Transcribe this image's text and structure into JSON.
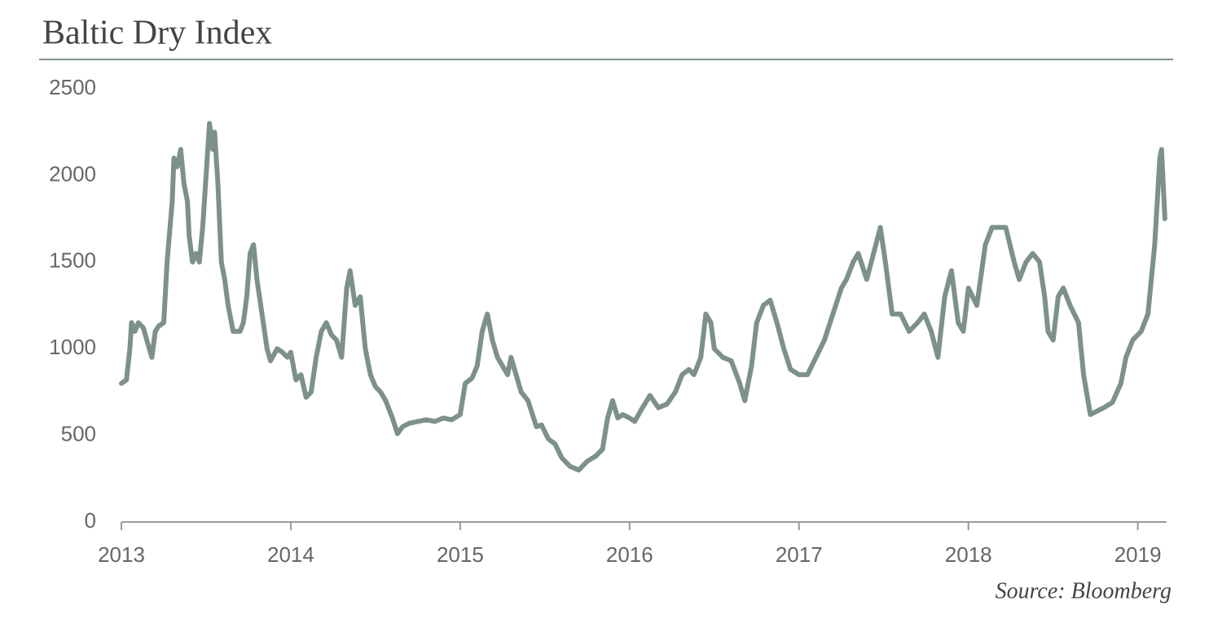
{
  "chart_data": {
    "type": "line",
    "title": "Baltic Dry Index",
    "source": "Source: Bloomberg",
    "xlim": [
      2013,
      2019.17
    ],
    "xticks": [
      2013,
      2014,
      2015,
      2016,
      2017,
      2018,
      2019
    ],
    "ylim": [
      0,
      2500
    ],
    "yticks": [
      0,
      500,
      1000,
      1500,
      2000,
      2500
    ],
    "grid": false,
    "series": [
      {
        "name": "Baltic Dry Index",
        "color": "#7d918c",
        "x": [
          2013.0,
          2013.03,
          2013.05,
          2013.06,
          2013.08,
          2013.1,
          2013.13,
          2013.15,
          2013.18,
          2013.2,
          2013.22,
          2013.25,
          2013.27,
          2013.3,
          2013.31,
          2013.33,
          2013.35,
          2013.37,
          2013.39,
          2013.4,
          2013.42,
          2013.44,
          2013.46,
          2013.48,
          2013.5,
          2013.52,
          2013.54,
          2013.55,
          2013.57,
          2013.59,
          2013.61,
          2013.63,
          2013.66,
          2013.7,
          2013.72,
          2013.74,
          2013.76,
          2013.78,
          2013.8,
          2013.83,
          2013.86,
          2013.88,
          2013.92,
          2013.95,
          2013.98,
          2014.0,
          2014.03,
          2014.06,
          2014.09,
          2014.12,
          2014.15,
          2014.18,
          2014.21,
          2014.24,
          2014.27,
          2014.3,
          2014.33,
          2014.35,
          2014.38,
          2014.41,
          2014.44,
          2014.47,
          2014.5,
          2014.53,
          2014.56,
          2014.6,
          2014.63,
          2014.66,
          2014.7,
          2014.75,
          2014.8,
          2014.85,
          2014.9,
          2014.95,
          2015.0,
          2015.03,
          2015.07,
          2015.1,
          2015.13,
          2015.16,
          2015.19,
          2015.22,
          2015.25,
          2015.28,
          2015.3,
          2015.33,
          2015.36,
          2015.4,
          2015.45,
          2015.48,
          2015.52,
          2015.56,
          2015.6,
          2015.65,
          2015.7,
          2015.75,
          2015.8,
          2015.84,
          2015.87,
          2015.9,
          2015.93,
          2015.96,
          2016.0,
          2016.03,
          2016.07,
          2016.12,
          2016.17,
          2016.22,
          2016.27,
          2016.31,
          2016.35,
          2016.38,
          2016.42,
          2016.45,
          2016.48,
          2016.5,
          2016.55,
          2016.6,
          2016.65,
          2016.68,
          2016.72,
          2016.75,
          2016.79,
          2016.83,
          2016.87,
          2016.91,
          2016.95,
          2017.0,
          2017.05,
          2017.1,
          2017.15,
          2017.2,
          2017.25,
          2017.28,
          2017.32,
          2017.35,
          2017.4,
          2017.44,
          2017.48,
          2017.51,
          2017.55,
          2017.6,
          2017.65,
          2017.7,
          2017.74,
          2017.78,
          2017.82,
          2017.86,
          2017.9,
          2017.94,
          2017.97,
          2018.0,
          2018.05,
          2018.1,
          2018.14,
          2018.18,
          2018.22,
          2018.27,
          2018.3,
          2018.34,
          2018.38,
          2018.42,
          2018.45,
          2018.47,
          2018.5,
          2018.53,
          2018.56,
          2018.6,
          2018.65,
          2018.68,
          2018.72,
          2018.76,
          2018.8,
          2018.85,
          2018.9,
          2018.93,
          2018.97,
          2019.02,
          2019.06,
          2019.1,
          2019.13,
          2019.14,
          2019.16
        ],
        "values": [
          800,
          820,
          1000,
          1150,
          1100,
          1150,
          1120,
          1050,
          950,
          1100,
          1130,
          1150,
          1500,
          1850,
          2100,
          2050,
          2150,
          1950,
          1850,
          1650,
          1500,
          1550,
          1500,
          1700,
          2000,
          2300,
          2150,
          2250,
          1950,
          1500,
          1400,
          1250,
          1100,
          1100,
          1150,
          1300,
          1550,
          1600,
          1400,
          1200,
          1000,
          930,
          1000,
          980,
          950,
          980,
          820,
          850,
          720,
          750,
          950,
          1100,
          1150,
          1080,
          1050,
          950,
          1350,
          1450,
          1250,
          1300,
          1000,
          850,
          780,
          750,
          700,
          600,
          510,
          550,
          570,
          580,
          590,
          580,
          600,
          590,
          620,
          800,
          830,
          900,
          1100,
          1200,
          1050,
          950,
          900,
          850,
          950,
          850,
          750,
          700,
          550,
          560,
          480,
          450,
          370,
          320,
          300,
          350,
          380,
          420,
          600,
          700,
          600,
          620,
          600,
          580,
          650,
          730,
          660,
          680,
          750,
          850,
          880,
          850,
          950,
          1200,
          1150,
          1000,
          950,
          930,
          800,
          700,
          900,
          1150,
          1250,
          1280,
          1150,
          1000,
          880,
          850,
          850,
          950,
          1050,
          1200,
          1350,
          1400,
          1500,
          1550,
          1400,
          1550,
          1700,
          1500,
          1200,
          1200,
          1100,
          1150,
          1200,
          1100,
          950,
          1300,
          1450,
          1150,
          1100,
          1350,
          1250,
          1600,
          1700,
          1700,
          1700,
          1500,
          1400,
          1500,
          1550,
          1500,
          1300,
          1100,
          1050,
          1300,
          1350,
          1250,
          1150,
          850,
          620,
          640,
          660,
          690,
          800,
          950,
          1050,
          1100,
          1200,
          1600,
          2100,
          2150,
          1750
        ]
      }
    ]
  }
}
